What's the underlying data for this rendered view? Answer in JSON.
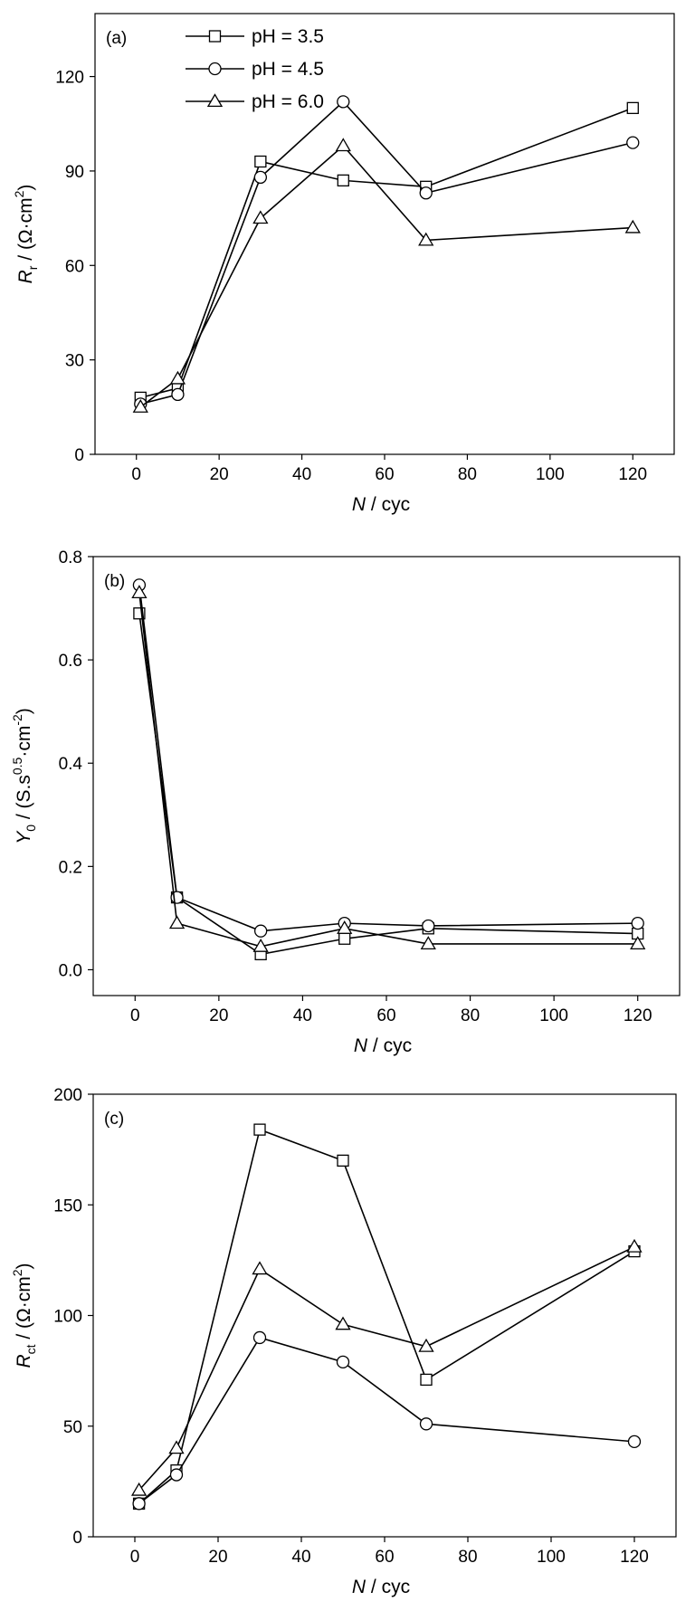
{
  "chart_data": [
    {
      "type": "line",
      "panel_label": "(a)",
      "ylabel_main": "R",
      "ylabel_sub": "r",
      "ylabel_unit": " / (Ω·cm",
      "ylabel_sup": "2",
      "ylabel_close": ")",
      "xlabel_main": "N",
      "xlabel_unit": " / cyc",
      "xlim": [
        -10,
        130
      ],
      "ylim": [
        0,
        140
      ],
      "xticks": [
        0,
        20,
        40,
        60,
        80,
        100,
        120
      ],
      "yticks": [
        0,
        30,
        60,
        90,
        120
      ],
      "legend": "top-left",
      "x": [
        1,
        10,
        30,
        50,
        70,
        120
      ],
      "series": [
        {
          "name": "pH = 3.5",
          "marker": "square",
          "values": [
            18,
            21,
            93,
            87,
            85,
            110
          ]
        },
        {
          "name": "pH = 4.5",
          "marker": "circle",
          "values": [
            16,
            19,
            88,
            112,
            83,
            99
          ]
        },
        {
          "name": "pH = 6.0",
          "marker": "triangle",
          "values": [
            15,
            24,
            75,
            98,
            68,
            72
          ]
        }
      ]
    },
    {
      "type": "line",
      "panel_label": "(b)",
      "ylabel_main": "Y",
      "ylabel_sub": "0",
      "ylabel_unit": " / (S.s",
      "ylabel_sup": "0.5",
      "ylabel_mid": "·cm",
      "ylabel_sup2": "-2",
      "ylabel_close": ")",
      "xlabel_main": "N",
      "xlabel_unit": "  / cyc",
      "xlim": [
        -10,
        130
      ],
      "ylim": [
        -0.05,
        0.8
      ],
      "xticks": [
        0,
        20,
        40,
        60,
        80,
        100,
        120
      ],
      "yticks": [
        0.0,
        0.2,
        0.4,
        0.6,
        0.8
      ],
      "ytick_labels": [
        "0.0",
        "0.2",
        "0.4",
        "0.6",
        "0.8"
      ],
      "x": [
        1,
        10,
        30,
        50,
        70,
        120
      ],
      "series": [
        {
          "marker": "square",
          "values": [
            0.69,
            0.14,
            0.03,
            0.06,
            0.08,
            0.07
          ]
        },
        {
          "marker": "circle",
          "values": [
            0.745,
            0.14,
            0.075,
            0.09,
            0.085,
            0.09
          ]
        },
        {
          "marker": "triangle",
          "values": [
            0.73,
            0.09,
            0.045,
            0.08,
            0.05,
            0.05
          ]
        }
      ]
    },
    {
      "type": "line",
      "panel_label": "(c)",
      "ylabel_main": "R",
      "ylabel_sub": "ct",
      "ylabel_unit": " / (Ω·cm",
      "ylabel_sup": "2",
      "ylabel_close": ")",
      "xlabel_main": "N",
      "xlabel_unit": " / cyc",
      "xlim": [
        -10,
        130
      ],
      "ylim": [
        0,
        200
      ],
      "xticks": [
        0,
        20,
        40,
        60,
        80,
        100,
        120
      ],
      "yticks": [
        0,
        50,
        100,
        150,
        200
      ],
      "x": [
        1,
        10,
        30,
        50,
        70,
        120
      ],
      "series": [
        {
          "marker": "square",
          "values": [
            15,
            30,
            184,
            170,
            71,
            129
          ]
        },
        {
          "marker": "circle",
          "values": [
            15,
            28,
            90,
            79,
            51,
            43
          ]
        },
        {
          "marker": "triangle",
          "values": [
            21,
            40,
            121,
            96,
            86,
            131
          ]
        }
      ]
    }
  ]
}
